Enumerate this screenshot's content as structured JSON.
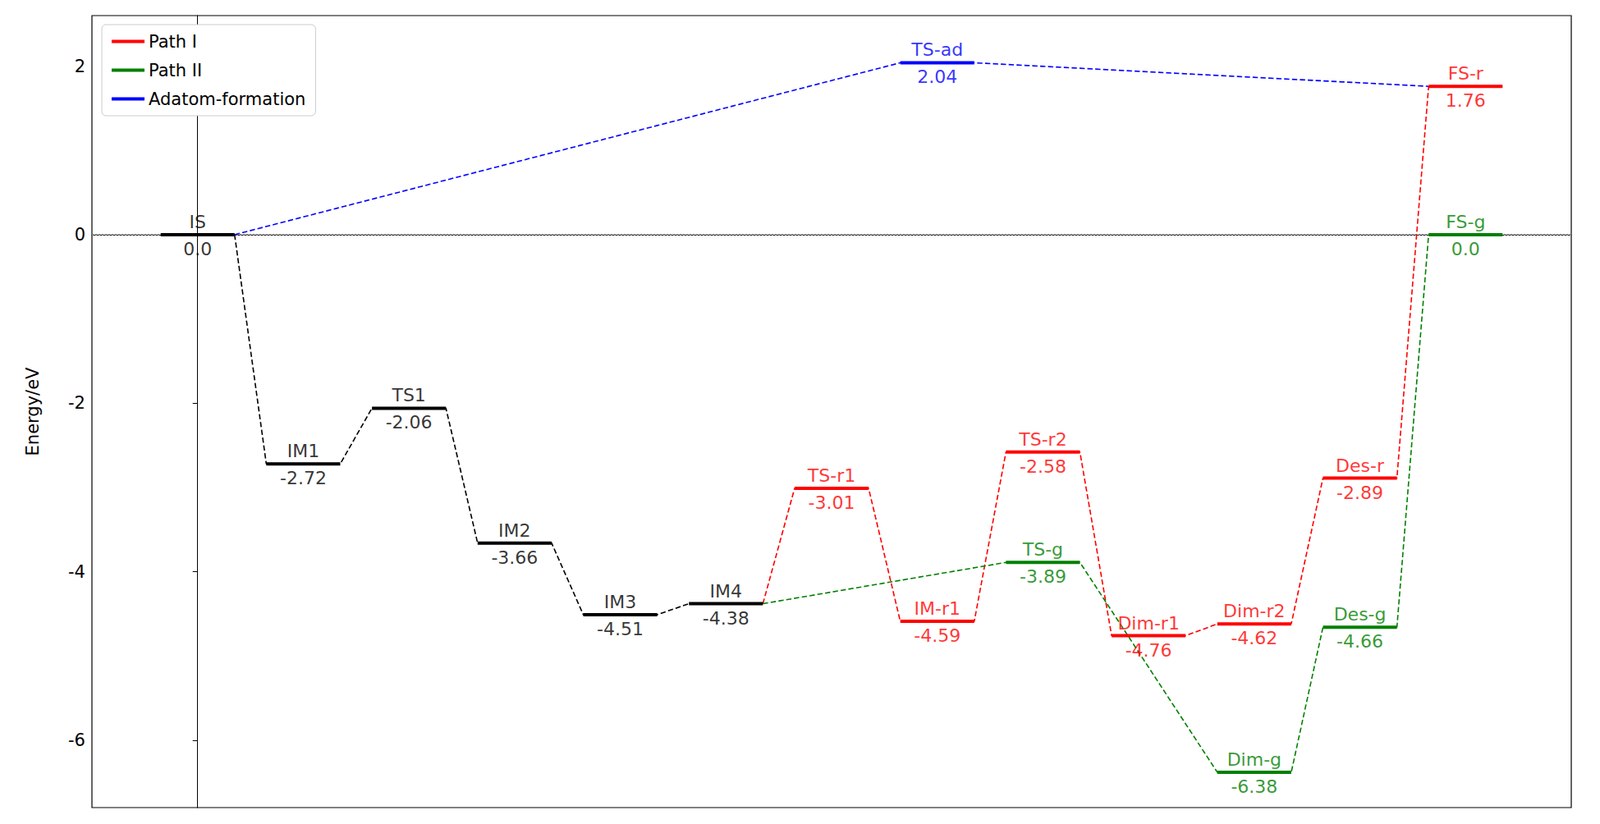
{
  "chart_data": {
    "type": "energy_profile",
    "y_label": "Energy/eV",
    "xlim": [
      -1,
      13
    ],
    "ylim": [
      -6.8,
      2.6
    ],
    "yticks": [
      -6,
      -4,
      -2,
      0,
      2
    ],
    "tick_labels": "y",
    "grid": false,
    "legend": "upper left",
    "hline": 0,
    "levels": [
      {
        "label": "IS",
        "x": 0,
        "value": 0.0,
        "value_label": "0.0",
        "color": "#000000"
      },
      {
        "label": "IM1",
        "x": 1,
        "value": -2.72,
        "value_label": "-2.72",
        "color": "#000000"
      },
      {
        "label": "TS1",
        "x": 2,
        "value": -2.06,
        "value_label": "-2.06",
        "color": "#000000"
      },
      {
        "label": "IM2",
        "x": 3,
        "value": -3.66,
        "value_label": "-3.66",
        "color": "#000000"
      },
      {
        "label": "IM3",
        "x": 4,
        "value": -4.51,
        "value_label": "-4.51",
        "color": "#000000"
      },
      {
        "label": "IM4",
        "x": 5,
        "value": -4.38,
        "value_label": "-4.38",
        "color": "#000000"
      },
      {
        "label": "TS-r1",
        "x": 6,
        "value": -3.01,
        "value_label": "-3.01",
        "color": "#ff0000"
      },
      {
        "label": "IM-r1",
        "x": 7,
        "value": -4.59,
        "value_label": "-4.59",
        "color": "#ff0000"
      },
      {
        "label": "TS-r2",
        "x": 8,
        "value": -2.58,
        "value_label": "-2.58",
        "color": "#ff0000"
      },
      {
        "label": "Dim-r1",
        "x": 9,
        "value": -4.76,
        "value_label": "-4.76",
        "color": "#ff0000"
      },
      {
        "label": "Dim-r2",
        "x": 10,
        "value": -4.62,
        "value_label": "-4.62",
        "color": "#ff0000"
      },
      {
        "label": "Des-r",
        "x": 11,
        "value": -2.89,
        "value_label": "-2.89",
        "color": "#ff0000"
      },
      {
        "label": "FS-r",
        "x": 12,
        "value": 1.76,
        "value_label": "1.76",
        "color": "#ff0000"
      },
      {
        "label": "TS-g",
        "x": 8,
        "value": -3.89,
        "value_label": "-3.89",
        "color": "#008000"
      },
      {
        "label": "Dim-g",
        "x": 10,
        "value": -6.38,
        "value_label": "-6.38",
        "color": "#008000"
      },
      {
        "label": "Des-g",
        "x": 11,
        "value": -4.66,
        "value_label": "-4.66",
        "color": "#008000"
      },
      {
        "label": "FS-g",
        "x": 12,
        "value": 0.0,
        "value_label": "0.0",
        "color": "#008000"
      },
      {
        "label": "TS-ad",
        "x": 7,
        "value": 2.04,
        "value_label": "2.04",
        "color": "#0000ff"
      }
    ],
    "series": [
      {
        "color": "#000000",
        "line_style": "dashed",
        "states": [
          "IS",
          "IM1",
          "TS1",
          "IM2",
          "IM3",
          "IM4"
        ]
      },
      {
        "name": "Path I",
        "color": "#ff0000",
        "line_style": "dashed",
        "states": [
          "IM4",
          "TS-r1",
          "IM-r1",
          "TS-r2",
          "Dim-r1",
          "Dim-r2",
          "Des-r",
          "FS-r"
        ]
      },
      {
        "name": "Path II",
        "color": "#008000",
        "line_style": "dashed",
        "states": [
          "IM4",
          "TS-g",
          "Dim-g",
          "Des-g",
          "FS-g"
        ]
      },
      {
        "name": "Adatom-formation",
        "color": "#0000ff",
        "line_style": "dashed",
        "states": [
          "IS",
          "TS-ad",
          "FS-r"
        ]
      }
    ]
  }
}
